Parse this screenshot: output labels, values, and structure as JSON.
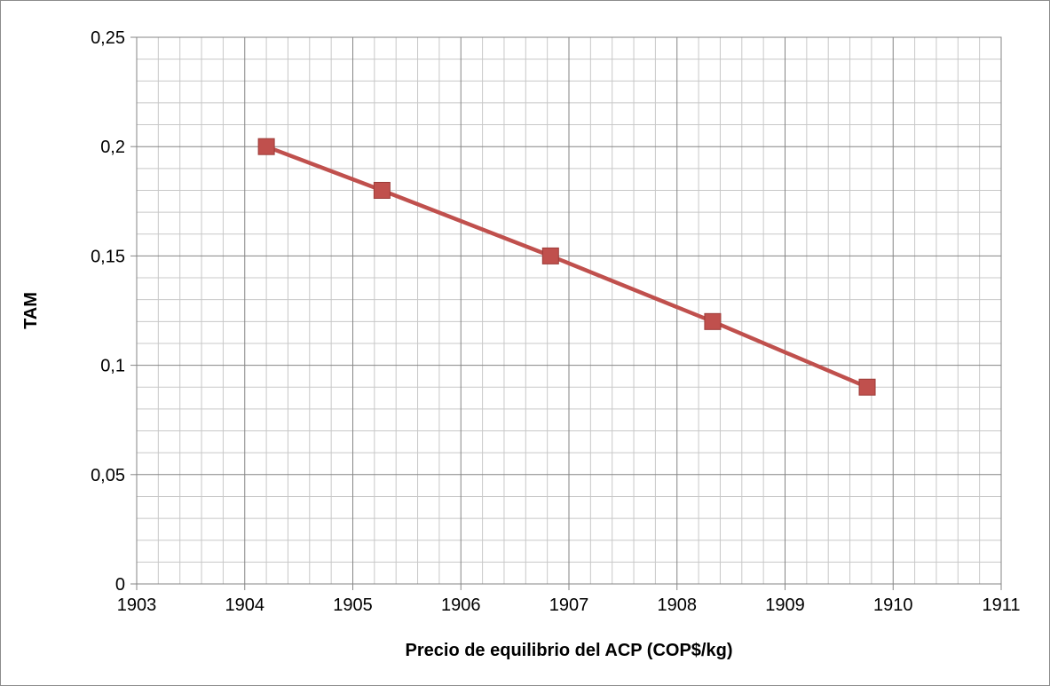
{
  "chart_data": {
    "type": "line",
    "title": "",
    "xlabel": "Precio de equilibrio del ACP (COP$/kg)",
    "ylabel": "TAM",
    "xlim": [
      1903,
      1911
    ],
    "ylim": [
      0,
      0.25
    ],
    "x_ticks": [
      1903,
      1904,
      1905,
      1906,
      1907,
      1908,
      1909,
      1910,
      1911
    ],
    "x_tick_labels": [
      "1903",
      "1904",
      "1905",
      "1906",
      "1907",
      "1908",
      "1909",
      "1910",
      "1911"
    ],
    "y_ticks": [
      0,
      0.05,
      0.1,
      0.15,
      0.2,
      0.25
    ],
    "y_tick_labels": [
      "0",
      "0,05",
      "0,1",
      "0,15",
      "0,2",
      "0,25"
    ],
    "grid": true,
    "minor_grid": true,
    "legend": "none",
    "series": [
      {
        "color": "#c0504d",
        "marker": "square",
        "x": [
          1904.2,
          1905.27,
          1906.83,
          1908.33,
          1909.76
        ],
        "y": [
          0.2,
          0.18,
          0.15,
          0.12,
          0.09
        ]
      }
    ]
  }
}
